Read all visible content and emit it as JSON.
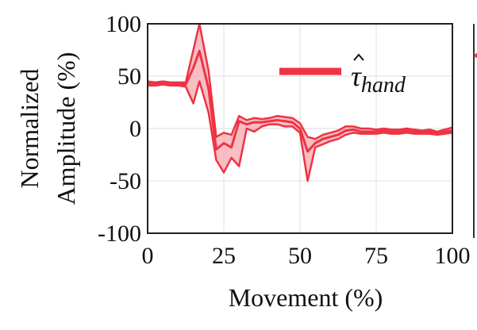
{
  "chart_data": {
    "type": "area",
    "xlabel": "Movement (%)",
    "ylabel_lines": [
      "Normalized",
      "Amplitude (%)"
    ],
    "xlim": [
      0,
      100
    ],
    "ylim": [
      -100,
      100
    ],
    "xticks": [
      "0",
      "25",
      "50",
      "75",
      "100"
    ],
    "yticks": [
      "100",
      "50",
      "0",
      "-50",
      "-100"
    ],
    "grid": true,
    "legend": {
      "placement": "top-right",
      "symbol": "τ",
      "subscript": "hand",
      "hat": true
    },
    "colors": {
      "line": "#ee3344",
      "fill": "#f6b3b8",
      "grid": "#dddddd",
      "axis": "#222222"
    },
    "series": [
      {
        "x": [
          0,
          2.5,
          5,
          7.5,
          10,
          12.5,
          15,
          17,
          20,
          22.5,
          25,
          27.5,
          30,
          32.5,
          35,
          37.5,
          40,
          42.5,
          45,
          47.5,
          50,
          52.5,
          55,
          57.5,
          60,
          62.5,
          65,
          67.5,
          70,
          72.5,
          75,
          77.5,
          80,
          82.5,
          85,
          87.5,
          90,
          92.5,
          95,
          97.5,
          100
        ],
        "upper": [
          45,
          44,
          45,
          44,
          44,
          44,
          75,
          100,
          55,
          -8,
          -4,
          -6,
          12,
          8,
          10,
          9,
          10,
          12,
          11,
          10,
          5,
          -8,
          -10,
          -6,
          -4,
          -2,
          2,
          2,
          0,
          0,
          -1,
          0,
          -1,
          -1,
          0,
          -1,
          -2,
          -1,
          -3,
          -1,
          1
        ],
        "mean": [
          43,
          43,
          43,
          42,
          42,
          42,
          58,
          74,
          38,
          -20,
          -14,
          -18,
          7,
          4,
          6,
          6,
          7,
          8,
          7,
          6,
          0,
          -22,
          -14,
          -10,
          -8,
          -6,
          -2,
          -1,
          -3,
          -3,
          -3,
          -2,
          -3,
          -3,
          -2,
          -3,
          -3,
          -3,
          -4,
          -3,
          -2
        ],
        "lower": [
          41,
          41,
          42,
          41,
          41,
          40,
          24,
          45,
          15,
          -30,
          -42,
          -28,
          -36,
          0,
          -3,
          2,
          4,
          4,
          2,
          2,
          -4,
          -50,
          -18,
          -15,
          -12,
          -10,
          -6,
          -4,
          -5,
          -5,
          -5,
          -4,
          -5,
          -5,
          -4,
          -5,
          -5,
          -5,
          -6,
          -5,
          -4
        ]
      }
    ]
  }
}
